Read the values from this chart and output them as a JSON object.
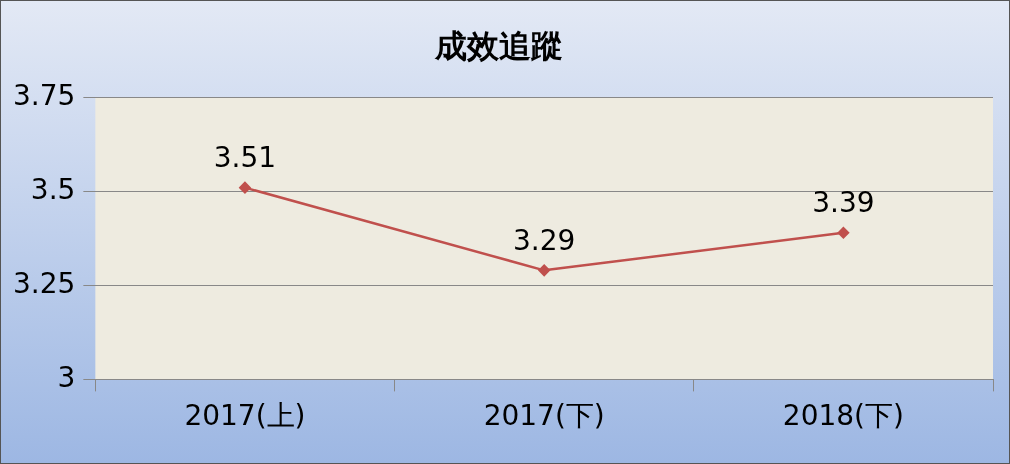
{
  "chart_data": {
    "type": "line",
    "title": "成效追蹤",
    "categories": [
      "2017(上)",
      "2017(下)",
      "2018(下)"
    ],
    "series": [
      {
        "color": "#c0504d",
        "values": [
          3.51,
          3.29,
          3.39
        ]
      }
    ],
    "ylim": [
      3,
      3.75
    ],
    "yticks": [
      3,
      3.25,
      3.5,
      3.75
    ],
    "grid": "y",
    "data_labels": true,
    "marker": "diamond"
  }
}
